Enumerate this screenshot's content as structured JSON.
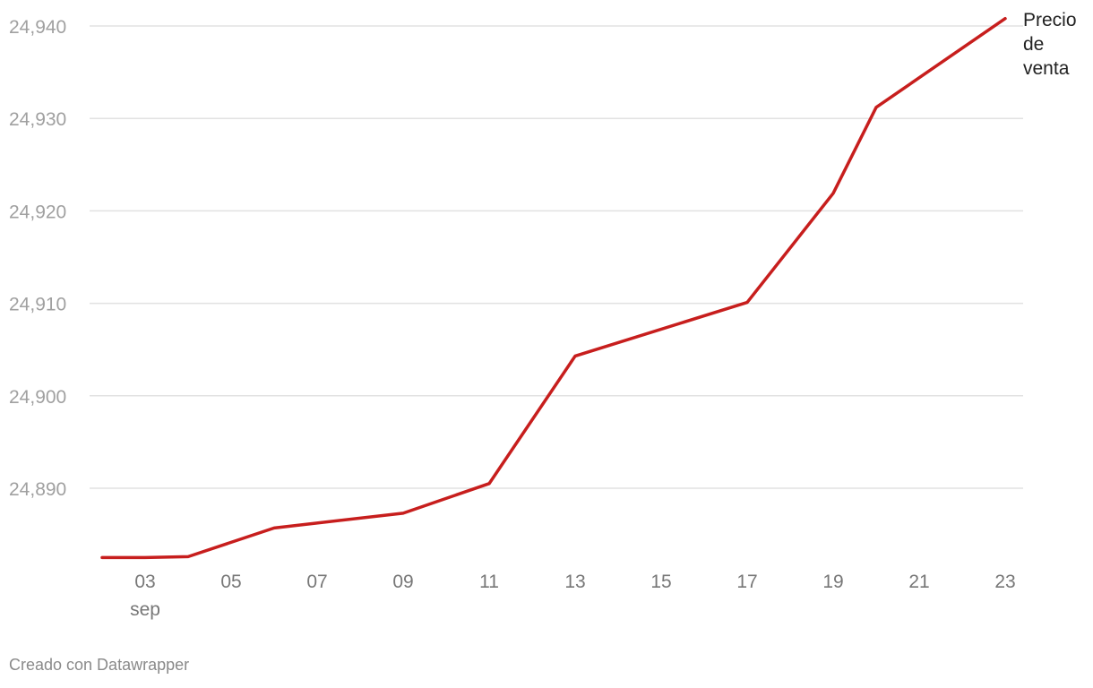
{
  "chart_data": {
    "type": "line",
    "title": "",
    "xlabel": "",
    "ylabel": "",
    "x": [
      "02",
      "03",
      "04",
      "06",
      "09",
      "11",
      "13",
      "17",
      "19",
      "20",
      "23"
    ],
    "x_month_label": "sep",
    "xticks": [
      "03",
      "05",
      "07",
      "09",
      "11",
      "13",
      "15",
      "17",
      "19",
      "21",
      "23"
    ],
    "yticks": [
      "24,890",
      "24,900",
      "24,910",
      "24,920",
      "24,930",
      "24,940"
    ],
    "ytick_values": [
      24890,
      24900,
      24910,
      24920,
      24930,
      24940
    ],
    "ylim": [
      24882,
      24941
    ],
    "grid": true,
    "series": [
      {
        "name": "Precio de venta",
        "name_lines": [
          "Precio",
          "de",
          "venta"
        ],
        "color": "#c71e1d",
        "values": [
          24882.5,
          24882.5,
          24882.6,
          24885.7,
          24887.3,
          24890.5,
          24904.3,
          24910.1,
          24921.9,
          24931.2,
          24940.8
        ]
      }
    ]
  },
  "footer": {
    "credit": "Creado con Datawrapper"
  }
}
